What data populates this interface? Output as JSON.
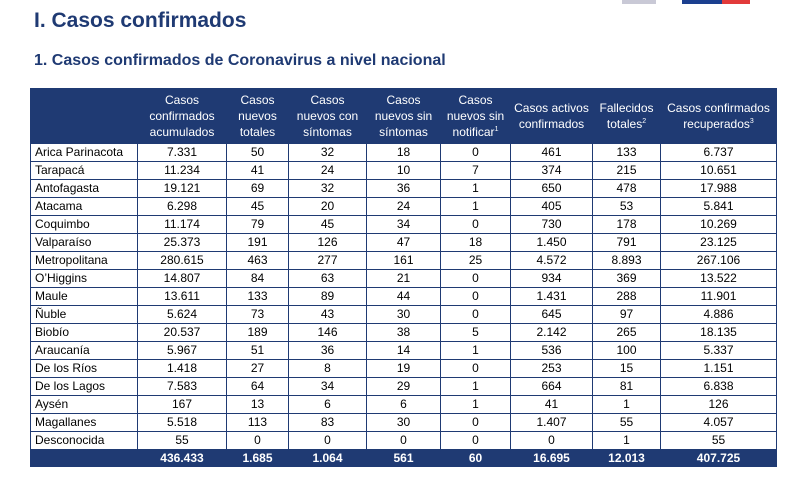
{
  "section_title": "I. Casos confirmados",
  "subsection_title": "1. Casos confirmados de Coronavirus a nivel nacional",
  "table": {
    "headers": [
      "",
      "Casos confirmados acumulados",
      "Casos nuevos totales",
      "Casos nuevos con síntomas",
      "Casos nuevos sin síntomas",
      "Casos nuevos sin notificar",
      "Casos activos confirmados",
      "Fallecidos totales",
      "Casos confirmados recuperados"
    ],
    "header_notes": [
      "",
      "",
      "",
      "",
      "",
      "1",
      "",
      "2",
      "3"
    ],
    "rows": [
      [
        "Arica Parinacota",
        "7.331",
        "50",
        "32",
        "18",
        "0",
        "461",
        "133",
        "6.737"
      ],
      [
        "Tarapacá",
        "11.234",
        "41",
        "24",
        "10",
        "7",
        "374",
        "215",
        "10.651"
      ],
      [
        "Antofagasta",
        "19.121",
        "69",
        "32",
        "36",
        "1",
        "650",
        "478",
        "17.988"
      ],
      [
        "Atacama",
        "6.298",
        "45",
        "20",
        "24",
        "1",
        "405",
        "53",
        "5.841"
      ],
      [
        "Coquimbo",
        "11.174",
        "79",
        "45",
        "34",
        "0",
        "730",
        "178",
        "10.269"
      ],
      [
        "Valparaíso",
        "25.373",
        "191",
        "126",
        "47",
        "18",
        "1.450",
        "791",
        "23.125"
      ],
      [
        "Metropolitana",
        "280.615",
        "463",
        "277",
        "161",
        "25",
        "4.572",
        "8.893",
        "267.106"
      ],
      [
        "O’Higgins",
        "14.807",
        "84",
        "63",
        "21",
        "0",
        "934",
        "369",
        "13.522"
      ],
      [
        "Maule",
        "13.611",
        "133",
        "89",
        "44",
        "0",
        "1.431",
        "288",
        "11.901"
      ],
      [
        "Ñuble",
        "5.624",
        "73",
        "43",
        "30",
        "0",
        "645",
        "97",
        "4.886"
      ],
      [
        "Biobío",
        "20.537",
        "189",
        "146",
        "38",
        "5",
        "2.142",
        "265",
        "18.135"
      ],
      [
        "Araucanía",
        "5.967",
        "51",
        "36",
        "14",
        "1",
        "536",
        "100",
        "5.337"
      ],
      [
        "De los Ríos",
        "1.418",
        "27",
        "8",
        "19",
        "0",
        "253",
        "15",
        "1.151"
      ],
      [
        "De los Lagos",
        "7.583",
        "64",
        "34",
        "29",
        "1",
        "664",
        "81",
        "6.838"
      ],
      [
        "Aysén",
        "167",
        "13",
        "6",
        "6",
        "1",
        "41",
        "1",
        "126"
      ],
      [
        "Magallanes",
        "5.518",
        "113",
        "83",
        "30",
        "0",
        "1.407",
        "55",
        "4.057"
      ],
      [
        "Desconocida",
        "55",
        "0",
        "0",
        "0",
        "0",
        "0",
        "1",
        "55"
      ]
    ],
    "total": [
      "",
      "436.433",
      "1.685",
      "1.064",
      "561",
      "60",
      "16.695",
      "12.013",
      "407.725"
    ]
  },
  "colors": {
    "header_bg": "#1f3a73",
    "title_color": "#1f3a73"
  }
}
